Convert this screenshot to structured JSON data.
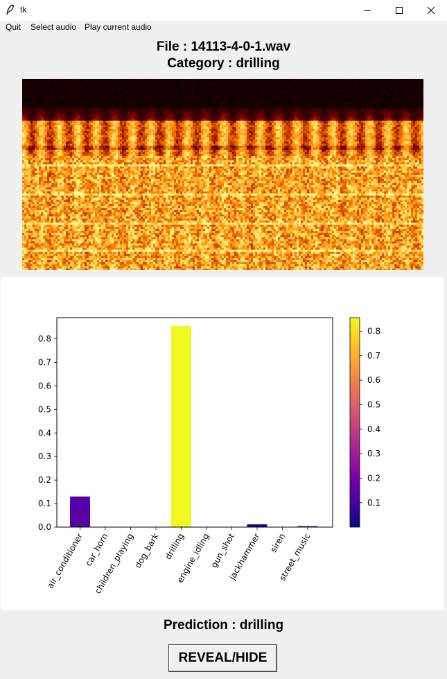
{
  "window": {
    "title": "tk",
    "icon": "feather-icon",
    "controls": [
      "minimize-icon",
      "maximize-icon",
      "close-icon"
    ]
  },
  "menu": {
    "items": [
      "Quit",
      "Select audio",
      "Play current audio"
    ]
  },
  "header": {
    "file_line": "File : 14113-4-0-1.wav",
    "category_line": "Category : drilling"
  },
  "spectrogram": {
    "colormap": "afmhot"
  },
  "chart_data": {
    "type": "bar",
    "categories": [
      "air_conditioner",
      "car_horn",
      "children_playing",
      "dog_bark",
      "drilling",
      "engine_idling",
      "gun_shot",
      "jackhammer",
      "siren",
      "street_music"
    ],
    "values": [
      0.13,
      0.0005,
      0.0005,
      0.0005,
      0.855,
      0.0005,
      0.001,
      0.012,
      0.0005,
      0.004
    ],
    "ylim": [
      0,
      0.89
    ],
    "yticks": [
      "0.0",
      "0.1",
      "0.2",
      "0.3",
      "0.4",
      "0.5",
      "0.6",
      "0.7",
      "0.8"
    ],
    "grid": false,
    "colormap": "plasma",
    "colorbar": {
      "range": [
        0.0005,
        0.855
      ],
      "ticks": [
        "0.1",
        "0.2",
        "0.3",
        "0.4",
        "0.5",
        "0.6",
        "0.7",
        "0.8"
      ]
    }
  },
  "prediction": {
    "text": "Prediction : drilling"
  },
  "buttons": {
    "reveal_label": "REVEAL/HIDE"
  }
}
